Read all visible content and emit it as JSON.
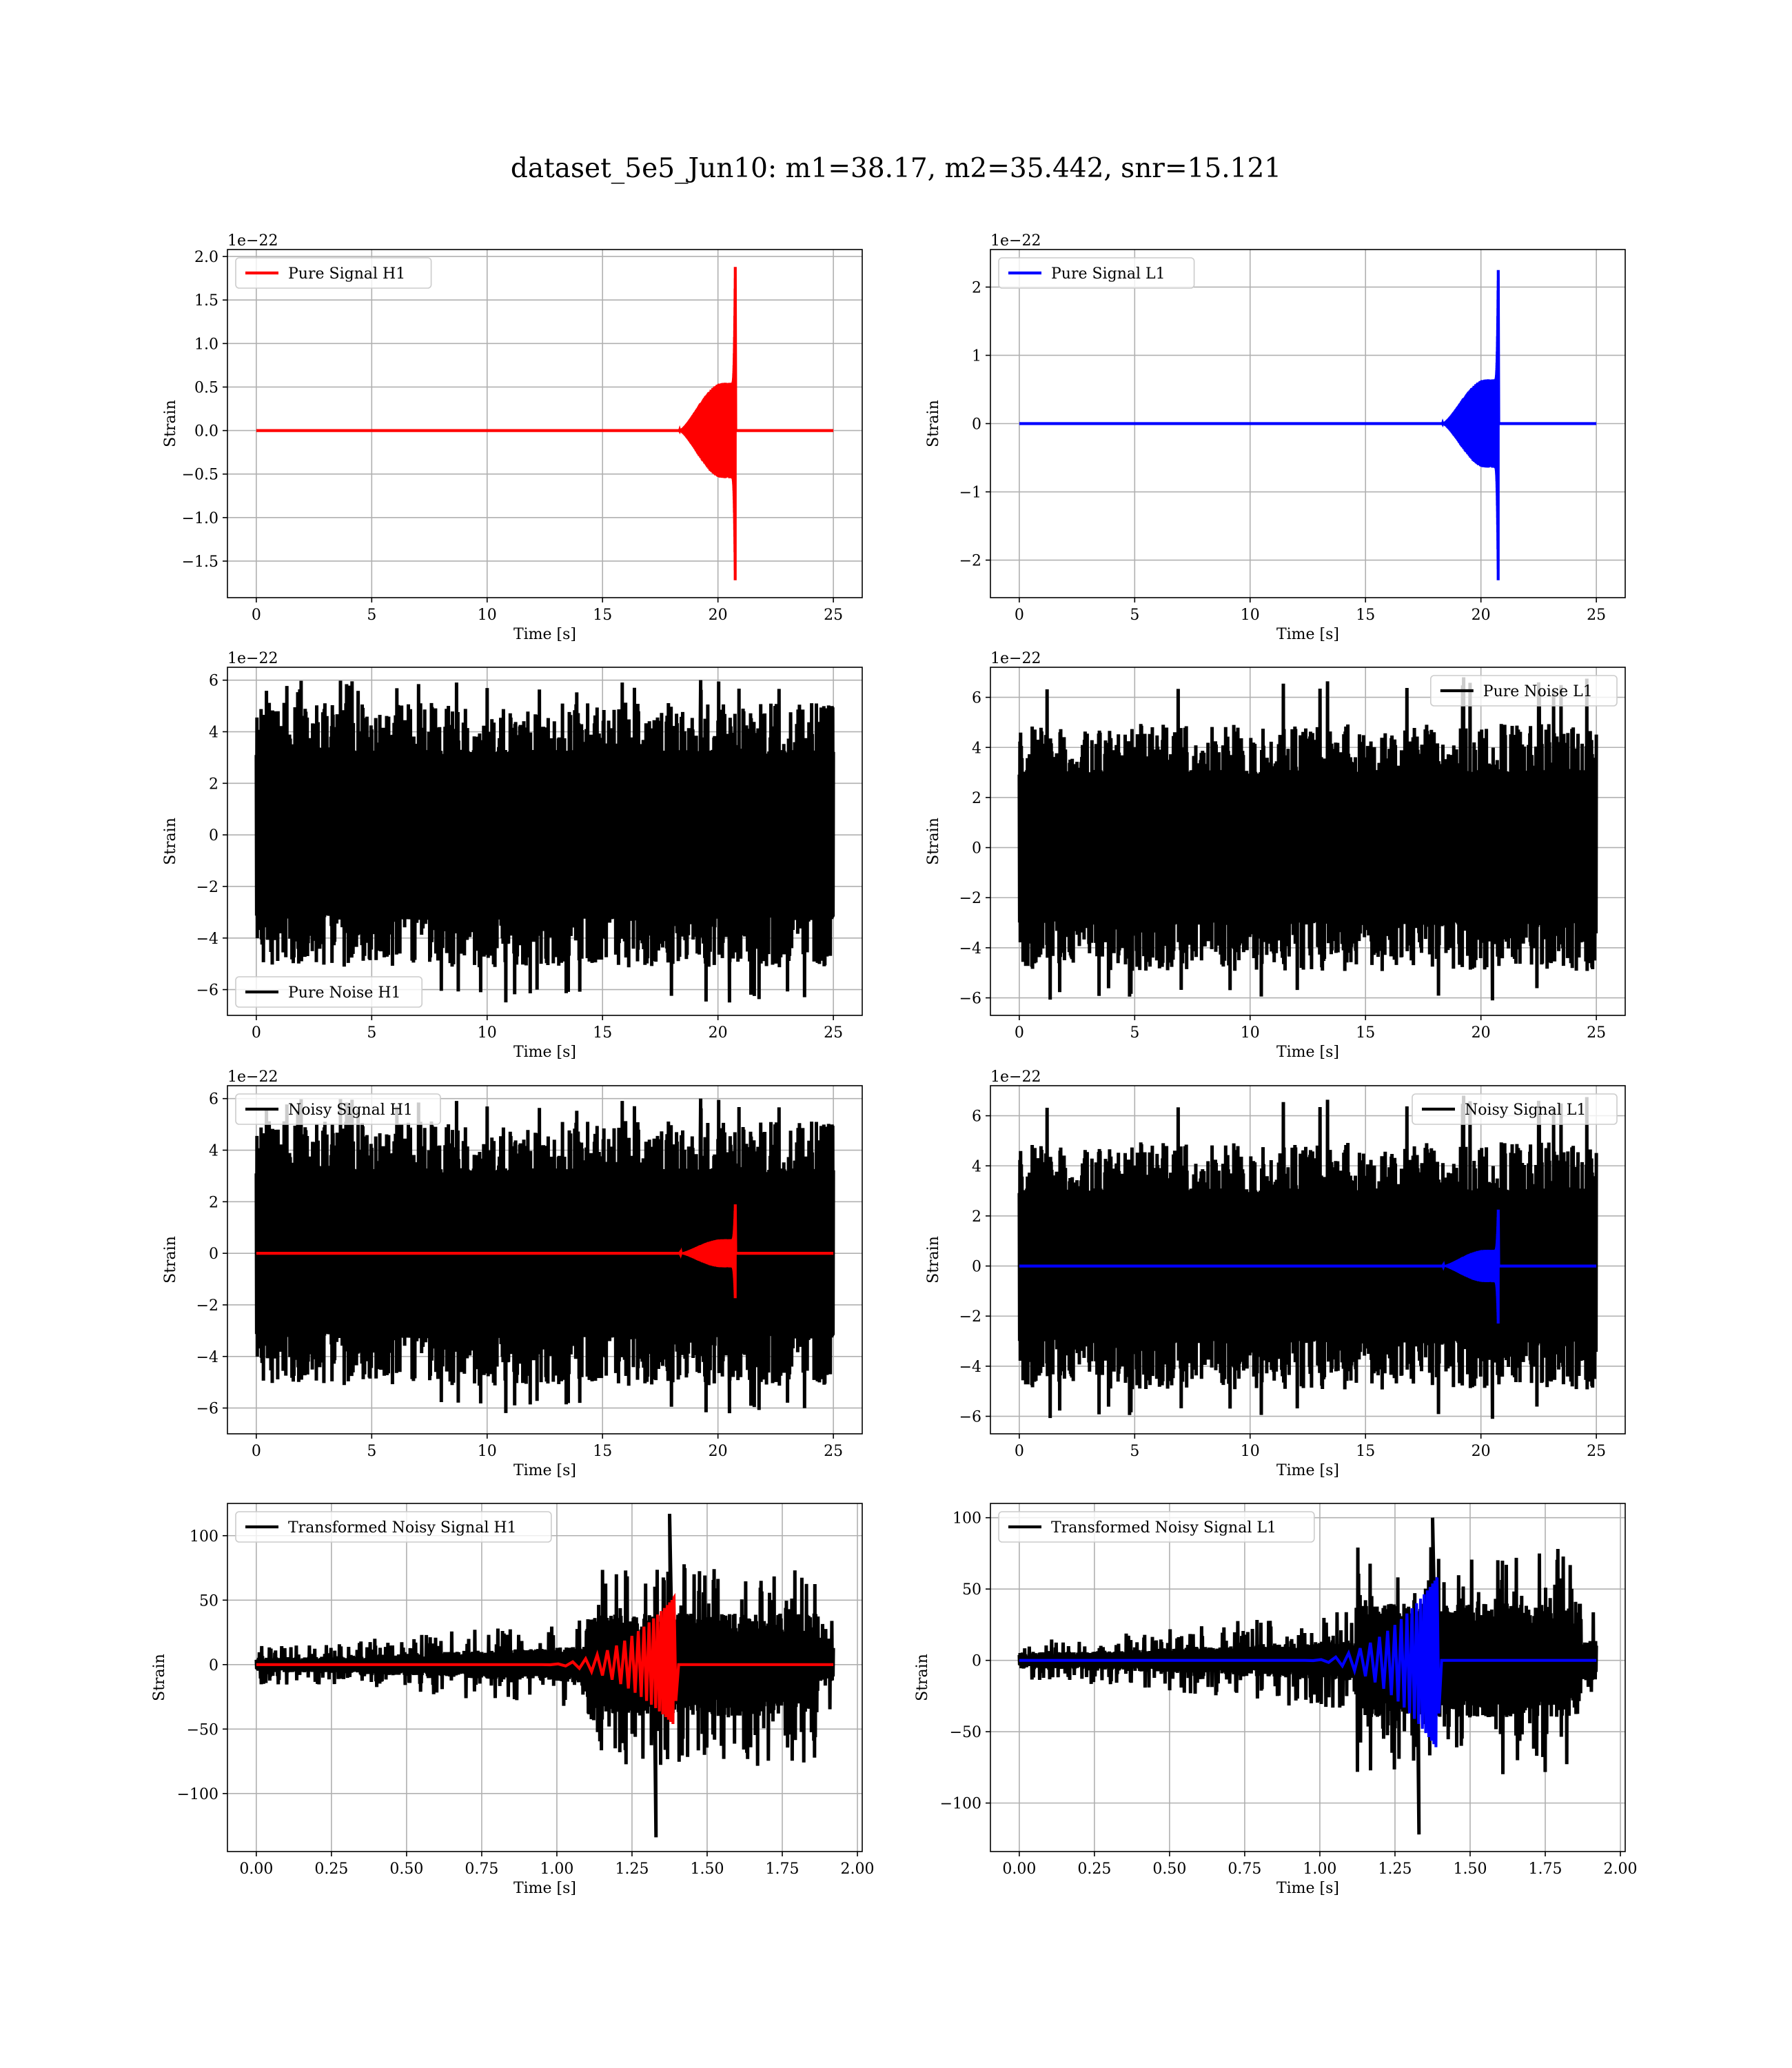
{
  "figure": {
    "title": "dataset_5e5_Jun10: m1=38.17, m2=35.442, snr=15.121"
  },
  "chart_data": [
    {
      "id": "h1-pure-signal",
      "type": "line",
      "xlabel": "Time [s]",
      "ylabel": "Strain",
      "offset_text": "1e−22",
      "xlim": [
        -1.25,
        26.25
      ],
      "ylim": [
        -1.92,
        2.08
      ],
      "xticks": [
        0,
        5,
        10,
        15,
        20,
        25
      ],
      "xtick_labels": [
        "0",
        "5",
        "10",
        "15",
        "20",
        "25"
      ],
      "yticks": [
        -1.5,
        -1.0,
        -0.5,
        0.0,
        0.5,
        1.0,
        1.5,
        2.0
      ],
      "ytick_labels": [
        "−1.5",
        "−1.0",
        "−0.5",
        "0.0",
        "0.5",
        "1.0",
        "1.5",
        "2.0"
      ],
      "grid": true,
      "legend_position": "top-left",
      "series": [
        {
          "name": "Pure Signal H1",
          "color": "#ff0000",
          "kind": "chirp",
          "x_start": 0,
          "x_end": 25,
          "t_onset": 18.3,
          "t_merge": 20.75,
          "amp_inspiral": 0.55,
          "amp_peak_pos": 1.88,
          "amp_peak_neg": -1.78
        }
      ]
    },
    {
      "id": "l1-pure-signal",
      "type": "line",
      "xlabel": "Time [s]",
      "ylabel": "Strain",
      "offset_text": "1e−22",
      "xlim": [
        -1.25,
        26.25
      ],
      "ylim": [
        -2.55,
        2.55
      ],
      "xticks": [
        0,
        5,
        10,
        15,
        20,
        25
      ],
      "xtick_labels": [
        "0",
        "5",
        "10",
        "15",
        "20",
        "25"
      ],
      "yticks": [
        -2,
        -1,
        0,
        1,
        2
      ],
      "ytick_labels": [
        "−2",
        "−1",
        "0",
        "1",
        "2"
      ],
      "grid": true,
      "legend_position": "top-left",
      "series": [
        {
          "name": "Pure Signal L1",
          "color": "#0000ff",
          "kind": "chirp",
          "x_start": 0,
          "x_end": 25,
          "t_onset": 18.3,
          "t_merge": 20.75,
          "amp_inspiral": 0.65,
          "amp_peak_pos": 2.25,
          "amp_peak_neg": -2.38
        }
      ]
    },
    {
      "id": "h1-pure-noise",
      "type": "line",
      "xlabel": "Time [s]",
      "ylabel": "Strain",
      "offset_text": "1e−22",
      "xlim": [
        -1.25,
        26.25
      ],
      "ylim": [
        -7.0,
        6.5
      ],
      "xticks": [
        0,
        5,
        10,
        15,
        20,
        25
      ],
      "xtick_labels": [
        "0",
        "5",
        "10",
        "15",
        "20",
        "25"
      ],
      "yticks": [
        -6,
        -4,
        -2,
        0,
        2,
        4,
        6
      ],
      "ytick_labels": [
        "−6",
        "−4",
        "−2",
        "0",
        "2",
        "4",
        "6"
      ],
      "grid": true,
      "legend_position": "lower-left",
      "series": [
        {
          "name": "Pure Noise H1",
          "color": "#000000",
          "kind": "noise",
          "x_start": 0,
          "x_end": 25,
          "core": 3.3,
          "peak_max": 6.0,
          "peak_min": -6.5,
          "seed": 11
        }
      ]
    },
    {
      "id": "l1-pure-noise",
      "type": "line",
      "xlabel": "Time [s]",
      "ylabel": "Strain",
      "offset_text": "1e−22",
      "xlim": [
        -1.25,
        26.25
      ],
      "ylim": [
        -6.7,
        7.2
      ],
      "xticks": [
        0,
        5,
        10,
        15,
        20,
        25
      ],
      "xtick_labels": [
        "0",
        "5",
        "10",
        "15",
        "20",
        "25"
      ],
      "yticks": [
        -6,
        -4,
        -2,
        0,
        2,
        4,
        6
      ],
      "ytick_labels": [
        "−6",
        "−4",
        "−2",
        "0",
        "2",
        "4",
        "6"
      ],
      "grid": true,
      "legend_position": "top-right",
      "series": [
        {
          "name": "Pure Noise L1",
          "color": "#000000",
          "kind": "noise",
          "x_start": 0,
          "x_end": 25,
          "core": 3.1,
          "peak_max": 6.8,
          "peak_min": -6.1,
          "seed": 23
        }
      ]
    },
    {
      "id": "h1-noisy-signal",
      "type": "line",
      "xlabel": "Time [s]",
      "ylabel": "Strain",
      "offset_text": "1e−22",
      "xlim": [
        -1.25,
        26.25
      ],
      "ylim": [
        -7.0,
        6.5
      ],
      "xticks": [
        0,
        5,
        10,
        15,
        20,
        25
      ],
      "xtick_labels": [
        "0",
        "5",
        "10",
        "15",
        "20",
        "25"
      ],
      "yticks": [
        -6,
        -4,
        -2,
        0,
        2,
        4,
        6
      ],
      "ytick_labels": [
        "−6",
        "−4",
        "−2",
        "0",
        "2",
        "4",
        "6"
      ],
      "grid": true,
      "legend_position": "top-left",
      "series": [
        {
          "name": "Noisy Signal H1",
          "color": "#000000",
          "kind": "noise",
          "x_start": 0,
          "x_end": 25,
          "core": 3.3,
          "peak_max": 6.0,
          "peak_min": -6.2,
          "seed": 11
        },
        {
          "name": "",
          "color": "#ff0000",
          "kind": "chirp",
          "x_start": 0,
          "x_end": 25,
          "t_onset": 18.3,
          "t_merge": 20.75,
          "amp_inspiral": 0.55,
          "amp_peak_pos": 1.9,
          "amp_peak_neg": -1.8
        }
      ]
    },
    {
      "id": "l1-noisy-signal",
      "type": "line",
      "xlabel": "Time [s]",
      "ylabel": "Strain",
      "offset_text": "1e−22",
      "xlim": [
        -1.25,
        26.25
      ],
      "ylim": [
        -6.7,
        7.2
      ],
      "xticks": [
        0,
        5,
        10,
        15,
        20,
        25
      ],
      "xtick_labels": [
        "0",
        "5",
        "10",
        "15",
        "20",
        "25"
      ],
      "yticks": [
        -6,
        -4,
        -2,
        0,
        2,
        4,
        6
      ],
      "ytick_labels": [
        "−6",
        "−4",
        "−2",
        "0",
        "2",
        "4",
        "6"
      ],
      "grid": true,
      "legend_position": "top-right",
      "series": [
        {
          "name": "Noisy Signal L1",
          "color": "#000000",
          "kind": "noise",
          "x_start": 0,
          "x_end": 25,
          "core": 3.1,
          "peak_max": 6.8,
          "peak_min": -6.1,
          "seed": 23
        },
        {
          "name": "",
          "color": "#0000ff",
          "kind": "chirp",
          "x_start": 0,
          "x_end": 25,
          "t_onset": 18.3,
          "t_merge": 20.75,
          "amp_inspiral": 0.65,
          "amp_peak_pos": 2.25,
          "amp_peak_neg": -2.38
        }
      ]
    },
    {
      "id": "h1-transformed",
      "type": "line",
      "xlabel": "Time [s]",
      "ylabel": "Strain",
      "offset_text": "",
      "xlim": [
        -0.096,
        2.016
      ],
      "ylim": [
        -145,
        125
      ],
      "xticks": [
        0.0,
        0.25,
        0.5,
        0.75,
        1.0,
        1.25,
        1.5,
        1.75,
        2.0
      ],
      "xtick_labels": [
        "0.00",
        "0.25",
        "0.50",
        "0.75",
        "1.00",
        "1.25",
        "1.50",
        "1.75",
        "2.00"
      ],
      "yticks": [
        -100,
        -50,
        0,
        50,
        100
      ],
      "ytick_labels": [
        "−100",
        "−50",
        "0",
        "50",
        "100"
      ],
      "grid": true,
      "legend_position": "top-left",
      "series": [
        {
          "name": "Transformed Noisy Signal H1",
          "color": "#000000",
          "kind": "whitened",
          "x_start": 0,
          "x_end": 1.92,
          "t_loud_start": 1.1,
          "t_loud_end": 1.87,
          "core_quiet": 6,
          "core_loud": 40,
          "peak_max": 117,
          "peak_min": -134,
          "seed": 37
        },
        {
          "name": "",
          "color": "#ff0000",
          "kind": "whitened-chirp",
          "x_start": 0,
          "x_end": 1.92,
          "t_onset": 0.95,
          "t_merge": 1.39,
          "amp_peak_pos": 52,
          "amp_peak_neg": -47
        }
      ]
    },
    {
      "id": "l1-transformed",
      "type": "line",
      "xlabel": "Time [s]",
      "ylabel": "Strain",
      "offset_text": "",
      "xlim": [
        -0.096,
        2.016
      ],
      "ylim": [
        -134,
        110
      ],
      "xticks": [
        0.0,
        0.25,
        0.5,
        0.75,
        1.0,
        1.25,
        1.5,
        1.75,
        2.0
      ],
      "xtick_labels": [
        "0.00",
        "0.25",
        "0.50",
        "0.75",
        "1.00",
        "1.25",
        "1.50",
        "1.75",
        "2.00"
      ],
      "yticks": [
        -100,
        -50,
        0,
        50,
        100
      ],
      "ytick_labels": [
        "−100",
        "−50",
        "0",
        "50",
        "100"
      ],
      "grid": true,
      "legend_position": "top-left",
      "series": [
        {
          "name": "Transformed Noisy Signal L1",
          "color": "#000000",
          "kind": "whitened",
          "x_start": 0,
          "x_end": 1.92,
          "t_loud_start": 1.12,
          "t_loud_end": 1.87,
          "core_quiet": 6,
          "core_loud": 40,
          "peak_max": 100,
          "peak_min": -122,
          "seed": 53
        },
        {
          "name": "",
          "color": "#0000ff",
          "kind": "whitened-chirp",
          "x_start": 0,
          "x_end": 1.92,
          "t_onset": 0.95,
          "t_merge": 1.39,
          "amp_peak_pos": 58,
          "amp_peak_neg": -62
        }
      ]
    }
  ]
}
